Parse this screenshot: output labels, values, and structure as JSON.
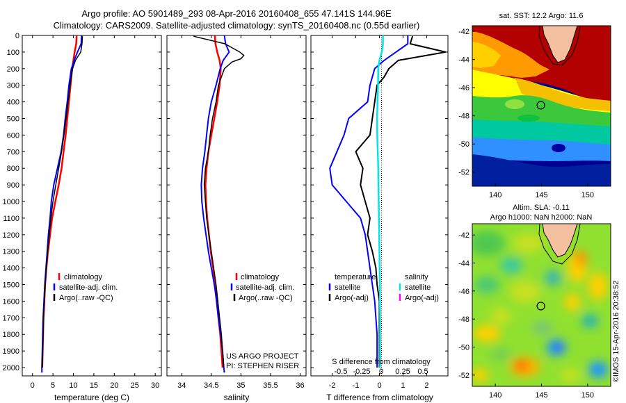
{
  "titles": {
    "line1": "Argo profile: AO 5901489_293 08-Apr-2016 20160408_655 47.141S 144.96E",
    "line2": "Climatology: CARS2009. Satellite-adjusted climatology: synTS_20160408.nc (0.55d earlier)"
  },
  "y_ticks": [
    0,
    100,
    200,
    300,
    400,
    500,
    600,
    700,
    800,
    900,
    1000,
    1100,
    1200,
    1300,
    1400,
    1500,
    1600,
    1700,
    1800,
    1900,
    2000
  ],
  "colors": {
    "climatology": "#ff0000",
    "satellite": "#0000ff",
    "argo": "#000000",
    "satellite_s": "#00e5e5",
    "argo_s": "#ff00ff"
  },
  "panels": {
    "temperature": {
      "xlabel": "temperature (deg C)",
      "xlim": [
        -2.5,
        31.5
      ],
      "xticks": [
        0,
        5,
        10,
        15,
        20,
        25,
        30
      ],
      "legend": [
        "climatology",
        "satellite-adj. clim.",
        "Argo(..raw -QC)"
      ]
    },
    "salinity": {
      "xlabel": "salinity",
      "xlim": [
        33.75,
        36.1
      ],
      "xticks": [
        34,
        34.5,
        35,
        35.5,
        36
      ],
      "legend": [
        "climatology",
        "satellite-adj. clim.",
        "Argo(..raw -QC)"
      ],
      "project_text": [
        "US ARGO PROJECT",
        "PI: STEPHEN RISER"
      ]
    },
    "difference": {
      "xlabel": "T difference from climatology",
      "top_xlabel": "S difference from climatology",
      "xlim": [
        -2.9,
        2.9
      ],
      "xticks": [
        -2,
        -1,
        0,
        1,
        2
      ],
      "top_xticks": [
        "-0.5",
        "-0.25",
        "0",
        "0.25",
        "0.5"
      ],
      "legend_t_title": "temperature",
      "legend_s_title": "salinity",
      "legend_t": [
        "satellite",
        "Argo(-adj)"
      ],
      "legend_s": [
        "satellite",
        "Argo(-adj)"
      ]
    }
  },
  "maps": {
    "sst": {
      "title": "sat. SST: 12.2 Argo: 11.6",
      "xticks": [
        140,
        145,
        150
      ],
      "yticks": [
        -42,
        -44,
        -46,
        -48,
        -50,
        -52
      ]
    },
    "sla": {
      "title1": "Altim. SLA: -0.11",
      "title2": "Argo h1000: NaN h2000: NaN",
      "xticks": [
        140,
        145,
        150
      ],
      "yticks": [
        -42,
        -44,
        -46,
        -48,
        -50,
        -52
      ]
    },
    "float_position": {
      "lon": 144.96,
      "lat": -47.141
    }
  },
  "watermark": "©IMOS 15-Apr-2016 20:38:52",
  "chart_data": [
    {
      "type": "line",
      "ylabel": "",
      "xlabel": "temperature (deg C)",
      "ylim": [
        2050,
        0
      ],
      "xlim": [
        -2.5,
        31.5
      ],
      "series": [
        {
          "name": "climatology",
          "depth": [
            0,
            50,
            100,
            150,
            200,
            300,
            400,
            500,
            600,
            700,
            800,
            900,
            1000,
            1100,
            1200,
            1300,
            1400,
            1500,
            1600,
            1700,
            1800,
            1900,
            2000
          ],
          "values": [
            10.8,
            10.7,
            10.3,
            10.0,
            9.7,
            9.3,
            8.9,
            8.5,
            8.1,
            7.6,
            7.1,
            6.4,
            5.6,
            4.8,
            4.3,
            3.8,
            3.4,
            3.1,
            2.9,
            2.7,
            2.6,
            2.5,
            2.4
          ]
        },
        {
          "name": "satellite-adj. clim.",
          "depth": [
            0,
            50,
            100,
            150,
            200,
            300,
            400,
            500,
            600,
            700,
            800,
            900,
            1000,
            1100,
            1200,
            1300,
            1400,
            1500,
            1600,
            1700,
            1800,
            1900,
            2000,
            2030
          ],
          "values": [
            12.0,
            11.9,
            11.0,
            10.2,
            9.5,
            8.9,
            8.5,
            8.0,
            7.6,
            7.0,
            6.1,
            5.2,
            4.6,
            4.3,
            3.9,
            3.6,
            3.3,
            3.0,
            2.8,
            2.6,
            2.5,
            2.4,
            2.3,
            2.3
          ]
        },
        {
          "name": "Argo(..raw -QC)",
          "depth": [
            5,
            50,
            100,
            150,
            200,
            300,
            400,
            500,
            600,
            700,
            800,
            900,
            1000,
            1100,
            1200,
            1300,
            1400,
            1500,
            1600,
            1700,
            1800,
            1900,
            2000
          ],
          "values": [
            12.2,
            12.1,
            11.8,
            10.5,
            9.8,
            9.2,
            8.7,
            8.2,
            7.7,
            7.1,
            6.4,
            5.7,
            5.0,
            4.5,
            4.1,
            3.7,
            3.4,
            3.1,
            2.9,
            2.7,
            2.6,
            2.5,
            2.4
          ]
        }
      ]
    },
    {
      "type": "line",
      "ylabel": "",
      "xlabel": "salinity",
      "ylim": [
        2050,
        0
      ],
      "xlim": [
        33.75,
        36.1
      ],
      "series": [
        {
          "name": "climatology",
          "depth": [
            0,
            50,
            100,
            150,
            200,
            300,
            400,
            500,
            600,
            700,
            800,
            900,
            1000,
            1100,
            1200,
            1300,
            1400,
            1500,
            1600,
            1700,
            1800,
            1900,
            2000
          ],
          "values": [
            34.56,
            34.57,
            34.6,
            34.64,
            34.66,
            34.64,
            34.6,
            34.55,
            34.5,
            34.45,
            34.42,
            34.4,
            34.41,
            34.43,
            34.46,
            34.49,
            34.53,
            34.56,
            34.59,
            34.62,
            34.65,
            34.67,
            34.69
          ]
        },
        {
          "name": "satellite-adj. clim.",
          "depth": [
            0,
            50,
            100,
            150,
            200,
            300,
            400,
            500,
            600,
            700,
            800,
            900,
            1000,
            1100,
            1200,
            1300,
            1400,
            1500,
            1600,
            1700,
            1800,
            1900,
            2000,
            2030
          ],
          "values": [
            34.72,
            34.74,
            34.8,
            34.7,
            34.65,
            34.58,
            34.5,
            34.45,
            34.42,
            34.39,
            34.35,
            34.33,
            34.34,
            34.37,
            34.41,
            34.45,
            34.5,
            34.55,
            34.59,
            34.62,
            34.66,
            34.69,
            34.71,
            34.72
          ]
        },
        {
          "name": "Argo(..raw -QC)",
          "depth": [
            5,
            50,
            100,
            120,
            140,
            160,
            200,
            300,
            400,
            500,
            600,
            700,
            800,
            900,
            1000,
            1100,
            1200,
            1300,
            1400,
            1500,
            1600,
            1700,
            1800,
            1900,
            2000
          ],
          "values": [
            34.2,
            34.73,
            34.98,
            35.05,
            35.0,
            34.85,
            34.72,
            34.62,
            34.58,
            34.52,
            34.48,
            34.45,
            34.4,
            34.38,
            34.4,
            34.42,
            34.46,
            34.5,
            34.54,
            34.58,
            34.61,
            34.64,
            34.67,
            34.69,
            34.71
          ]
        }
      ]
    },
    {
      "type": "line",
      "ylabel": "",
      "xlabel": "T difference from climatology",
      "ylim": [
        2050,
        0
      ],
      "xlim": [
        -2.9,
        2.9
      ],
      "series": [
        {
          "name": "temperature satellite",
          "depth": [
            0,
            50,
            100,
            150,
            200,
            300,
            400,
            500,
            600,
            700,
            800,
            900,
            1000,
            1100,
            1200,
            1300,
            1400,
            1500,
            1600,
            1700,
            1800,
            1900,
            2000
          ],
          "values": [
            1.2,
            1.2,
            0.7,
            0.2,
            -0.2,
            -0.4,
            -0.5,
            -1.3,
            -1.5,
            -1.8,
            -2.1,
            -2.0,
            -1.4,
            -0.8,
            -0.6,
            -0.5,
            -0.4,
            -0.3,
            -0.2,
            -0.15,
            -0.1,
            -0.1,
            -0.1
          ]
        },
        {
          "name": "temperature Argo(-adj)",
          "depth": [
            5,
            50,
            100,
            150,
            200,
            250,
            300,
            400,
            500,
            600,
            700,
            800,
            900,
            1000,
            1100,
            1200,
            1300,
            1400,
            1500,
            1600,
            1700,
            1800,
            1900,
            2000
          ],
          "values": [
            1.4,
            1.3,
            2.8,
            0.8,
            0.4,
            0.2,
            -0.1,
            -0.2,
            -0.3,
            -0.4,
            -1.0,
            -0.7,
            -0.8,
            -0.6,
            -0.4,
            -0.5,
            -0.3,
            -0.15,
            -0.1,
            0.0,
            0.0,
            0.0,
            0.0,
            0.0
          ]
        },
        {
          "name": "salinity satellite",
          "depth": [
            0,
            50,
            100,
            150,
            200,
            300,
            400,
            500,
            600,
            700,
            800,
            900,
            1000,
            1100,
            1200,
            1300,
            1400,
            1500,
            1600,
            1700,
            1800,
            1900,
            2000
          ],
          "values": [
            0.15,
            0.15,
            0.1,
            0.0,
            -0.05,
            -0.06,
            -0.08,
            -0.1,
            -0.09,
            -0.07,
            -0.05,
            -0.04,
            -0.03,
            -0.02,
            -0.01,
            0.0,
            0.01,
            0.02,
            0.02,
            0.03,
            0.03,
            0.03,
            0.03
          ]
        }
      ]
    }
  ]
}
